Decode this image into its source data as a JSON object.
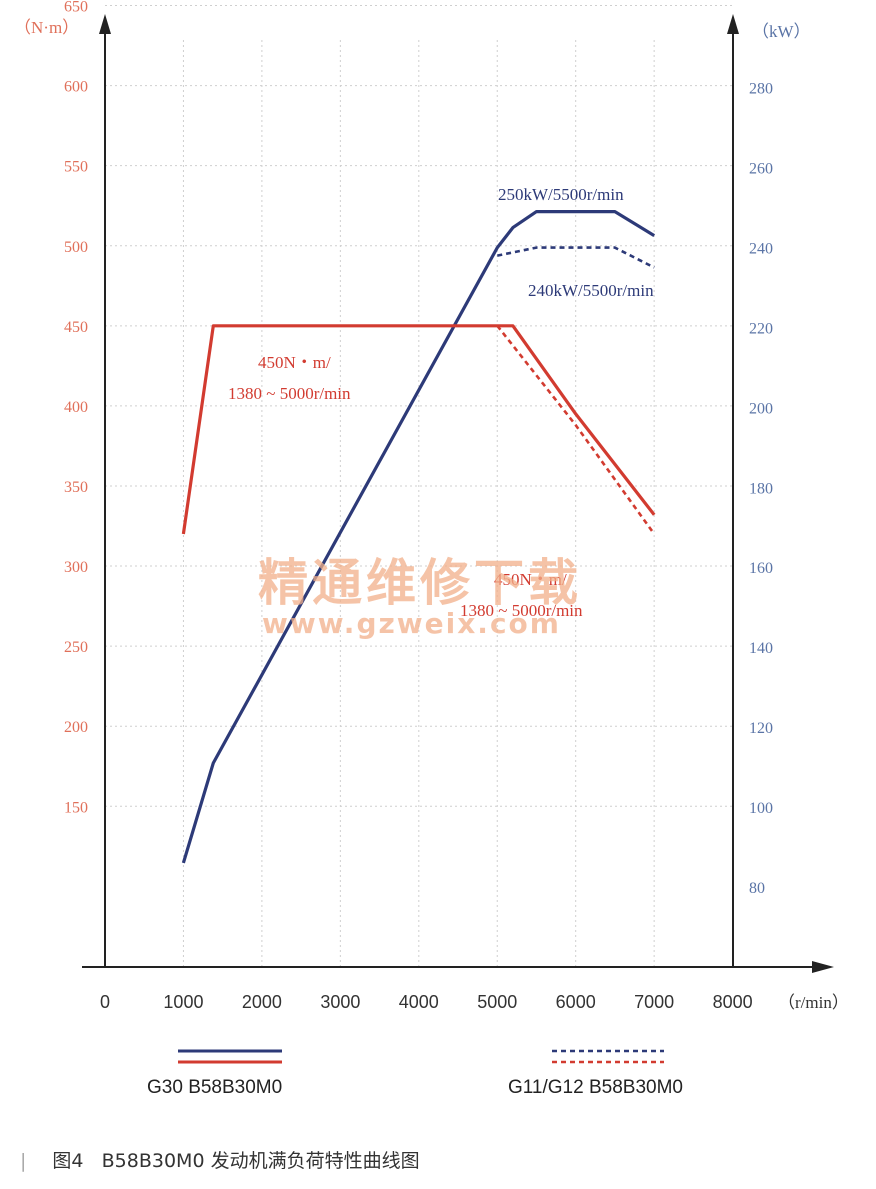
{
  "chart_data": {
    "type": "line",
    "left_unit": "（N·m）",
    "right_unit": "（kW）",
    "x_unit": "（r/min）",
    "x_ticks": [
      0,
      1000,
      2000,
      3000,
      4000,
      5000,
      6000,
      7000,
      8000
    ],
    "left_ticks": [
      150,
      200,
      250,
      300,
      350,
      400,
      450,
      500,
      550,
      600,
      650
    ],
    "right_ticks": [
      80,
      100,
      120,
      140,
      160,
      180,
      200,
      220,
      240,
      260,
      280
    ],
    "xlim": [
      0,
      8000
    ],
    "left_ylim": [
      100,
      700
    ],
    "right_ylim": [
      60,
      290
    ],
    "grid": true,
    "colors": {
      "torque": "#d23b30",
      "power": "#2d3a78",
      "grid": "#cfcfcf",
      "left_axis_text": "#e0705a",
      "right_axis_text": "#5a74a6",
      "watermark": "#f2b08a"
    },
    "series": [
      {
        "name": "G30 B58B30M0",
        "quantity": "power",
        "axis": "right",
        "style": "solid",
        "x": [
          1000,
          1380,
          5000,
          5200,
          5500,
          6500,
          7000
        ],
        "y": [
          86,
          111,
          240,
          245,
          249,
          249,
          243
        ]
      },
      {
        "name": "G30 B58B30M0",
        "quantity": "torque",
        "axis": "left",
        "style": "solid",
        "x": [
          1000,
          1380,
          5200,
          6000,
          7000
        ],
        "y": [
          320,
          450,
          450,
          395,
          332
        ]
      },
      {
        "name": "G11/G12 B58B30M0",
        "quantity": "power",
        "axis": "right",
        "style": "dashed",
        "x": [
          5000,
          5500,
          6500,
          7000
        ],
        "y": [
          238,
          240,
          240,
          235
        ]
      },
      {
        "name": "G11/G12 B58B30M0",
        "quantity": "torque",
        "axis": "left",
        "style": "dashed",
        "x": [
          5000,
          6000,
          7000
        ],
        "y": [
          450,
          388,
          320
        ]
      }
    ],
    "annotations": [
      {
        "text": "250kW/5500r/min",
        "color": "power"
      },
      {
        "text": "240kW/5500r/min",
        "color": "power"
      },
      {
        "text": "450N・m/",
        "color": "torque"
      },
      {
        "text": "1380 ~ 5000r/min",
        "color": "torque"
      },
      {
        "text": "450N・m/",
        "color": "torque"
      },
      {
        "text": "1380 ~ 5000r/min",
        "color": "torque"
      }
    ],
    "legend": [
      {
        "label": "G30 B58B30M0",
        "style": "solid"
      },
      {
        "label": "G11/G12 B58B30M0",
        "style": "dashed"
      }
    ]
  },
  "watermark": {
    "line1": "精通维修下载",
    "line2": "www.gzweix.com"
  },
  "caption": {
    "figure": "图4",
    "text": "B58B30M0 发动机满负荷特性曲线图"
  }
}
